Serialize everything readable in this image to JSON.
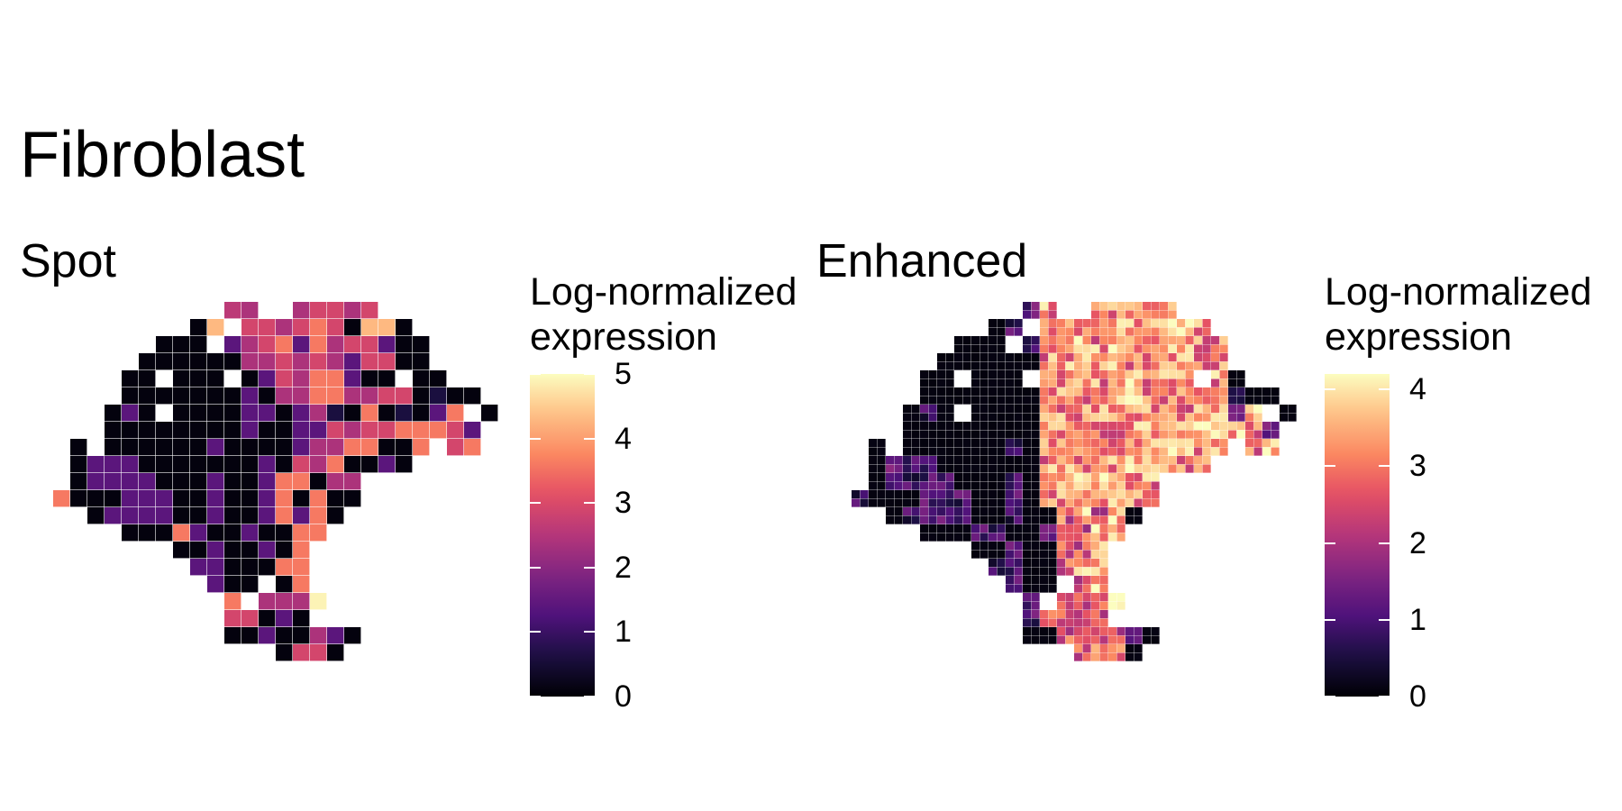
{
  "title": "Fibroblast",
  "chart_data": [
    {
      "type": "heatmap",
      "title": "Spot",
      "legend_title": "Log-normalized expression",
      "legend_title_lines": [
        "Log-normalized",
        "expression"
      ],
      "colorscale": "magma",
      "zlim": [
        0,
        5
      ],
      "colorbar_ticks": [
        0,
        1,
        2,
        3,
        4,
        5
      ],
      "grid": {
        "cols": 26,
        "rows": 21
      },
      "rows": [
        "           Kk  kmmkm      ",
        "         0f mmkmhm0ff0    ",
        "       000 dkmhdhkmmd00   ",
        "      000000kkmkmkdmm00   ",
        "     00 000 0dmkhhd00 00  ",
        "     0000000d0kkhhkkmm0b00",
        "    0d0 0000dd0dkb0h0b0dh 0",
        "    00000000d00ddmkmmhhhmd ",
        "  0 000000d0000dkkhh00h mh",
        "  0ddd0000000d0mkh00d0    ",
        "  0dddd000d00dhh0kk       ",
        " h000ddd00d00dh0h00       ",
        "   0dddd00d00dhdh0        ",
        "     000hd00d00hh         ",
        "        00d00d0h          ",
        "         dd000hh          ",
        "          d00 0h          ",
        "           h kkkF         ",
        "           mm0d0          ",
        "           00d00kd0       ",
        "              0mm0        "
      ],
      "legend_key": {
        "0": 0.1,
        "b": 0.6,
        "d": 1.4,
        "k": 2.4,
        "m": 2.9,
        "h": 3.6,
        "f": 4.3,
        "F": 4.9,
        "K": 2.6
      }
    },
    {
      "type": "heatmap",
      "title": "Enhanced",
      "legend_title": "Log-normalized expression",
      "legend_title_lines": [
        "Log-normalized",
        "expression"
      ],
      "colorscale": "magma",
      "zlim": [
        0,
        4.2
      ],
      "colorbar_ticks": [
        0,
        1,
        2,
        3,
        4
      ],
      "grid": {
        "cols": 52,
        "rows": 42
      }
    }
  ]
}
